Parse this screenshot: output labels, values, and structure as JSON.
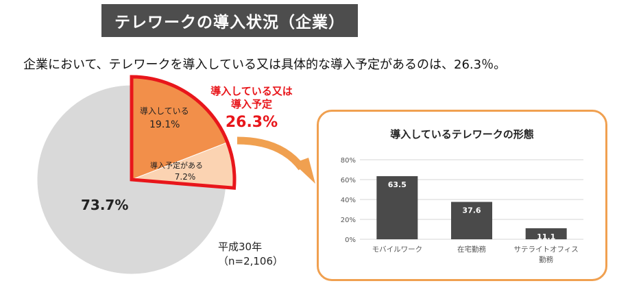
{
  "header": {
    "title": "テレワークの導入状況（企業）",
    "subtitle": "企業において、テレワークを導入している又は具体的な導入予定があるのは、26.3％。"
  },
  "callout": {
    "line1": "導入している又は",
    "line2": "導入予定",
    "value": "26.3%"
  },
  "note": {
    "year": "平成30年",
    "sample": "（n=2,106）"
  },
  "colors": {
    "slice_adopted": "#f28f4a",
    "slice_planned": "#fbd3b2",
    "slice_none": "#d9d9d9",
    "highlight_border": "#e8161b",
    "bar": "#4a4a4a",
    "panel_border": "#f0a050",
    "arrow": "#f0a050"
  },
  "chart_data": [
    {
      "type": "pie",
      "slices": [
        {
          "label": "導入している",
          "value": 19.1,
          "display": "19.1%"
        },
        {
          "label": "導入予定がある",
          "value": 7.2,
          "display": "7.2%"
        },
        {
          "label": "",
          "value": 73.7,
          "display": "73.7%"
        }
      ]
    },
    {
      "type": "bar",
      "title": "導入しているテレワークの形態",
      "categories": [
        "モバイルワーク",
        "在宅勤務",
        "サテライトオフィス勤務"
      ],
      "category_lines": [
        [
          "モバイルワーク"
        ],
        [
          "在宅勤務"
        ],
        [
          "サテライトオフィス",
          "勤務"
        ]
      ],
      "values": [
        63.5,
        37.6,
        11.1
      ],
      "value_labels": [
        "63.5",
        "37.6",
        "11.1"
      ],
      "ylim": [
        0,
        80
      ],
      "yticks": [
        0,
        20,
        40,
        60,
        80
      ],
      "ytick_labels": [
        "0%",
        "20%",
        "40%",
        "60%",
        "80%"
      ],
      "grid": true,
      "xlabel": "",
      "ylabel": ""
    }
  ]
}
